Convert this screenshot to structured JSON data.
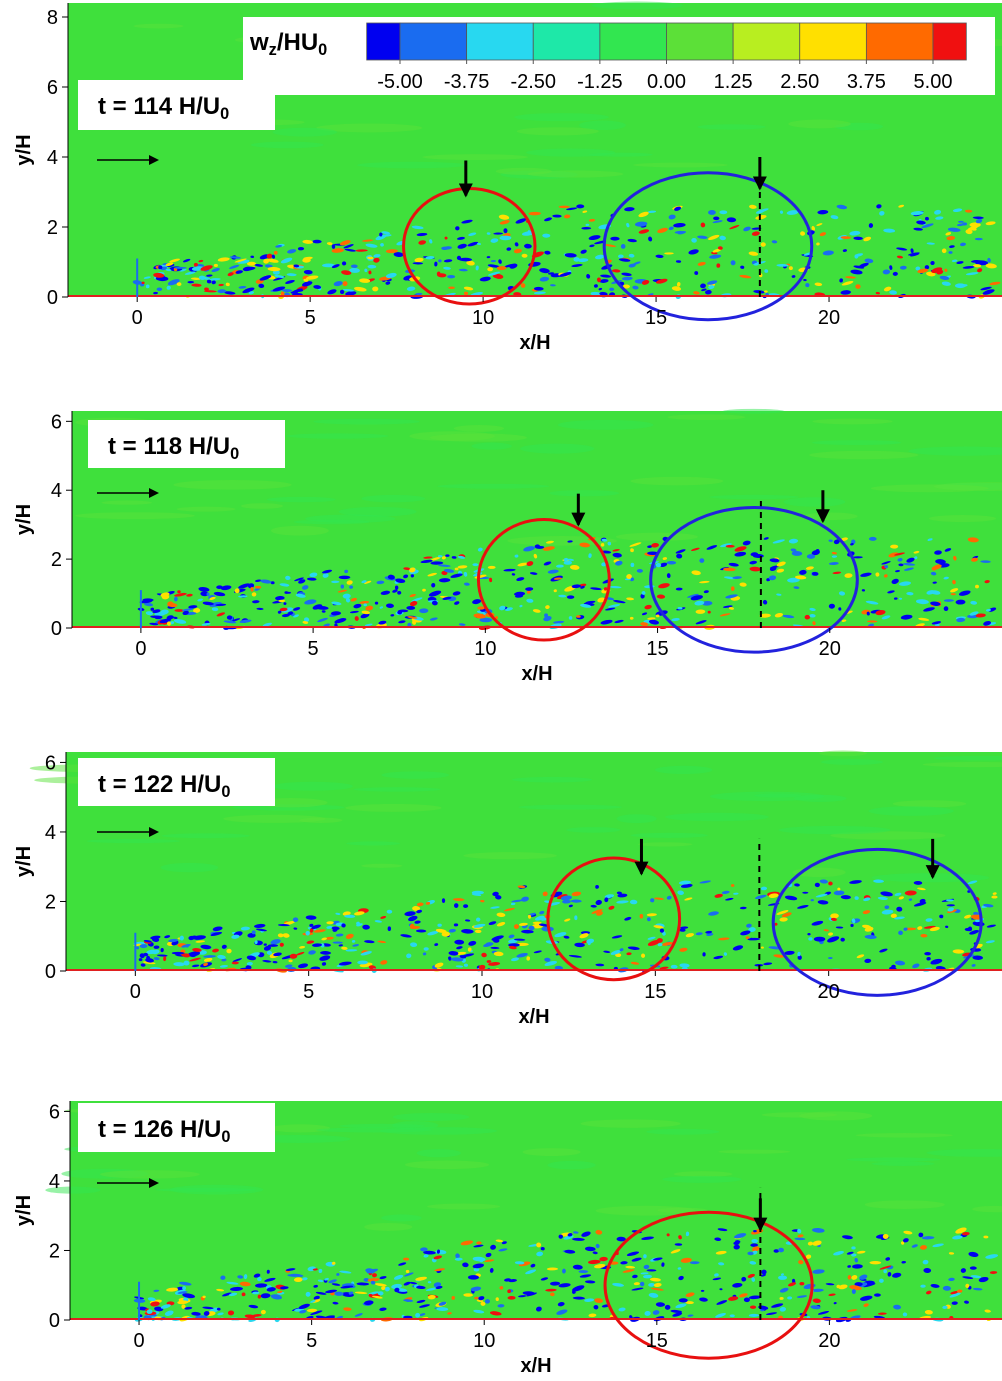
{
  "chart_data": [
    {
      "type": "contour",
      "title": [
        {
          "text": "t = 114 H/U"
        },
        {
          "sub": "0"
        }
      ],
      "xlabel": "x/H",
      "ylabel": "y/H",
      "xlim": [
        -2,
        25
      ],
      "ylim": [
        0,
        8.4
      ],
      "xticks": [
        0,
        5,
        10,
        15,
        20
      ],
      "yticks": [
        0,
        2,
        4,
        6,
        8
      ],
      "colorbar": {
        "title": [
          {
            "text": "w"
          },
          {
            "sub": "z"
          },
          {
            "text": "/HU"
          },
          {
            "sub": "0"
          }
        ],
        "levels": [
          {
            "value": -5,
            "label": "-5.00"
          },
          {
            "value": -3.75,
            "label": "-3.75"
          },
          {
            "value": -2.5,
            "label": "-2.50"
          },
          {
            "value": -1.25,
            "label": "-1.25"
          },
          {
            "value": 0,
            "label": "0.00"
          },
          {
            "value": 1.25,
            "label": "1.25"
          },
          {
            "value": 2.5,
            "label": "2.50"
          },
          {
            "value": 3.75,
            "label": "3.75"
          },
          {
            "value": 5,
            "label": "5.00"
          }
        ],
        "colors": [
          "#0000f0",
          "#1a6cf0",
          "#28d8f0",
          "#1ee8a8",
          "#32e650",
          "#5ce038",
          "#b8ee20",
          "#ffe000",
          "#ff6a00",
          "#f01010"
        ]
      }
    },
    {
      "type": "contour",
      "title": [
        {
          "text": "t = 118 H/U"
        },
        {
          "sub": "0"
        }
      ],
      "xlabel": "x/H",
      "ylabel": "y/H",
      "xlim": [
        -2,
        25
      ],
      "ylim": [
        0,
        6.3
      ],
      "xticks": [
        0,
        5,
        10,
        15,
        20
      ],
      "yticks": [
        0,
        2,
        4,
        6
      ]
    },
    {
      "type": "contour",
      "title": [
        {
          "text": "t = 122 H/U"
        },
        {
          "sub": "0"
        }
      ],
      "xlabel": "x/H",
      "ylabel": "y/H",
      "xlim": [
        -2,
        25
      ],
      "ylim": [
        0,
        6.3
      ],
      "xticks": [
        0,
        5,
        10,
        15,
        20
      ],
      "yticks": [
        0,
        2,
        4,
        6
      ]
    },
    {
      "type": "contour",
      "title": [
        {
          "text": "t = 126 H/U"
        },
        {
          "sub": "0"
        }
      ],
      "xlabel": "x/H",
      "ylabel": "y/H",
      "xlim": [
        -2,
        25
      ],
      "ylim": [
        0,
        6.3
      ],
      "xticks": [
        0,
        5,
        10,
        15,
        20
      ],
      "yticks": [
        0,
        2,
        4,
        6
      ]
    }
  ]
}
